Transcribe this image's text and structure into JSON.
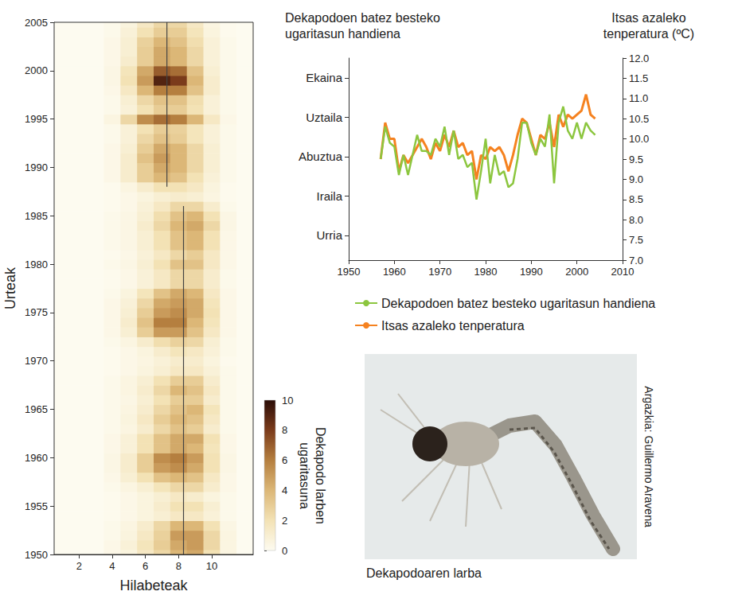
{
  "chart_data": [
    {
      "type": "heatmap",
      "x_label": "Hilabeteak",
      "y_label": "Urteak",
      "x": [
        1,
        2,
        3,
        4,
        5,
        6,
        7,
        8,
        9,
        10,
        11,
        12
      ],
      "y": [
        1950,
        1951,
        1952,
        1953,
        1954,
        1955,
        1956,
        1957,
        1958,
        1959,
        1960,
        1961,
        1962,
        1963,
        1964,
        1965,
        1966,
        1967,
        1968,
        1969,
        1970,
        1971,
        1972,
        1973,
        1974,
        1975,
        1976,
        1977,
        1978,
        1979,
        1980,
        1981,
        1982,
        1983,
        1984,
        1985,
        1986,
        1987,
        1988,
        1989,
        1990,
        1991,
        1992,
        1993,
        1994,
        1995,
        1996,
        1997,
        1998,
        1999,
        2000,
        2001,
        2002,
        2003,
        2004,
        2005
      ],
      "values": [
        [
          0,
          0,
          0,
          0.3,
          0.6,
          1.5,
          2.5,
          4,
          4.5,
          2,
          0.5,
          0
        ],
        [
          0,
          0,
          0,
          0.3,
          0.8,
          1.8,
          3,
          4.5,
          5,
          2.5,
          0.5,
          0
        ],
        [
          0,
          0,
          0,
          0.2,
          0.6,
          1.5,
          2.8,
          5,
          5,
          2.5,
          0.5,
          0
        ],
        [
          0,
          0,
          0,
          0.2,
          0.5,
          1.2,
          2.5,
          4,
          4,
          2,
          0.4,
          0
        ],
        [
          0,
          0,
          0,
          0.1,
          0.3,
          0.6,
          1,
          1.5,
          1.5,
          0.8,
          0.2,
          0
        ],
        [
          0,
          0,
          0,
          0.1,
          0.3,
          0.6,
          1.2,
          2,
          2,
          1,
          0.2,
          0
        ],
        [
          0,
          0,
          0,
          0.1,
          0.3,
          0.6,
          1,
          1.5,
          1.2,
          0.6,
          0.2,
          0
        ],
        [
          0,
          0,
          0,
          0.2,
          0.5,
          1,
          1.8,
          2.5,
          2.5,
          1.2,
          0.3,
          0
        ],
        [
          0,
          0,
          0,
          0.3,
          1,
          2,
          3.5,
          4,
          3.5,
          1.5,
          0.3,
          0
        ],
        [
          0,
          0,
          0,
          0.4,
          1.2,
          3,
          5,
          5.5,
          4.5,
          2,
          0.4,
          0
        ],
        [
          0,
          0,
          0,
          0.4,
          1.2,
          3,
          5.5,
          6,
          5,
          2,
          0.4,
          0
        ],
        [
          0,
          0,
          0,
          0.3,
          0.8,
          2,
          3.5,
          4.5,
          4,
          1.8,
          0.3,
          0
        ],
        [
          0,
          0,
          0,
          0.3,
          0.8,
          2,
          3.5,
          4.5,
          4.5,
          2,
          0.3,
          0
        ],
        [
          0,
          0,
          0,
          0.2,
          0.5,
          1.2,
          2.5,
          3.5,
          3,
          1.2,
          0.2,
          0
        ],
        [
          0,
          0,
          0,
          0.2,
          0.6,
          1.5,
          3,
          4,
          3.5,
          1.5,
          0.2,
          0
        ],
        [
          0,
          0,
          0,
          0.2,
          0.5,
          1.2,
          2.5,
          3.5,
          4,
          1.8,
          0.2,
          0
        ],
        [
          0,
          0,
          0,
          0.2,
          0.4,
          1,
          2,
          3,
          3,
          1.2,
          0.2,
          0
        ],
        [
          0,
          0,
          0,
          0.2,
          0.5,
          1.2,
          2.5,
          4,
          3.5,
          1.5,
          0.2,
          0
        ],
        [
          0,
          0,
          0,
          0.2,
          0.5,
          1,
          2,
          3,
          3,
          1.2,
          0.2,
          0
        ],
        [
          0,
          0,
          0,
          0.1,
          0.3,
          0.6,
          1,
          1.5,
          1.5,
          0.8,
          0.2,
          0
        ],
        [
          0,
          0,
          0,
          0.1,
          0.3,
          0.5,
          0.8,
          1.2,
          1.2,
          0.6,
          0.1,
          0
        ],
        [
          0,
          0,
          0,
          0.1,
          0.3,
          0.6,
          1.2,
          1.8,
          1.5,
          0.8,
          0.2,
          0
        ],
        [
          0,
          0,
          0,
          0.2,
          0.5,
          1.2,
          2.2,
          2.8,
          2.5,
          1,
          0.2,
          0
        ],
        [
          0,
          0,
          0,
          0.3,
          1,
          3,
          5,
          5,
          3.5,
          1.5,
          0.3,
          0
        ],
        [
          0,
          0,
          0,
          0.3,
          1.2,
          3.5,
          6,
          6,
          4,
          1.8,
          0.3,
          0
        ],
        [
          0,
          0,
          0,
          0.3,
          1,
          3,
          5,
          5.5,
          4.5,
          2,
          0.3,
          0
        ],
        [
          0,
          0,
          0,
          0.3,
          0.8,
          2.5,
          4.5,
          5,
          4.5,
          1.8,
          0.3,
          0
        ],
        [
          0,
          0,
          0,
          0.2,
          0.6,
          1.8,
          3.5,
          4.5,
          4,
          1.5,
          0.3,
          0
        ],
        [
          0,
          0,
          0,
          0.1,
          0.3,
          0.8,
          1.5,
          2.5,
          2.5,
          1.2,
          0.2,
          0
        ],
        [
          0,
          0,
          0,
          0.1,
          0.3,
          0.8,
          1.5,
          2.5,
          2.5,
          1.2,
          0.2,
          0
        ],
        [
          0,
          0,
          0,
          0.2,
          0.4,
          1,
          2,
          3.5,
          3.5,
          1.5,
          0.3,
          0
        ],
        [
          0,
          0,
          0,
          0.1,
          0.3,
          0.8,
          1.5,
          2.5,
          3,
          1.5,
          0.3,
          0
        ],
        [
          0,
          0,
          0,
          0.2,
          0.4,
          1,
          2,
          3.5,
          4,
          2,
          0.3,
          0
        ],
        [
          0,
          0,
          0,
          0.2,
          0.4,
          1,
          2,
          3.5,
          4,
          2,
          0.3,
          0
        ],
        [
          0,
          0,
          0,
          0.2,
          0.4,
          1.2,
          2.5,
          4,
          4.5,
          2.5,
          0.4,
          0
        ],
        [
          0,
          0,
          0,
          0.2,
          0.4,
          1,
          2.2,
          3.5,
          4,
          2,
          0.4,
          0
        ],
        [
          0,
          0,
          0,
          0.1,
          0.3,
          0.8,
          1.5,
          2.5,
          2.5,
          1.2,
          0.2,
          0
        ],
        [
          0,
          0,
          0,
          0.1,
          0.3,
          0.6,
          1,
          1.2,
          1,
          0.5,
          0.1,
          0
        ],
        [
          0,
          0,
          0,
          0.1,
          0.5,
          1.2,
          2,
          2,
          1.5,
          0.6,
          0.1,
          0
        ],
        [
          0,
          0,
          0,
          0.3,
          1.2,
          3,
          4,
          3.5,
          2,
          0.8,
          0.2,
          0
        ],
        [
          0,
          0,
          0,
          0.3,
          1.2,
          3,
          4.5,
          4,
          2.5,
          1,
          0.2,
          0
        ],
        [
          0,
          0,
          0,
          0.3,
          1.2,
          3.5,
          5,
          4,
          2.5,
          1,
          0.2,
          0
        ],
        [
          0,
          0,
          0,
          0.3,
          1,
          3,
          4.5,
          4,
          2.5,
          1,
          0.2,
          0
        ],
        [
          0,
          0,
          0,
          0.2,
          0.8,
          2.5,
          3.5,
          3,
          1.8,
          0.8,
          0.2,
          0
        ],
        [
          0,
          0,
          0,
          0.2,
          0.8,
          2,
          3,
          2.8,
          1.8,
          0.8,
          0.2,
          0
        ],
        [
          0,
          0,
          0,
          0.5,
          2.5,
          5.5,
          6.5,
          6,
          4,
          1.5,
          0.3,
          0
        ],
        [
          0,
          0,
          0,
          0.2,
          0.8,
          2,
          3,
          3,
          2,
          0.8,
          0.2,
          0
        ],
        [
          0,
          0,
          0,
          0.2,
          1,
          2.5,
          3.5,
          3.5,
          2.2,
          0.8,
          0.2,
          0
        ],
        [
          0,
          0,
          0,
          0.3,
          1.5,
          4,
          6,
          6,
          3.5,
          1.2,
          0.2,
          0
        ],
        [
          0,
          0,
          0,
          0.4,
          2,
          5,
          9,
          8,
          4,
          1.2,
          0.2,
          0
        ],
        [
          0,
          0,
          0,
          0.4,
          1.8,
          4.5,
          7,
          6.5,
          3.5,
          1,
          0.2,
          0
        ],
        [
          0,
          0,
          0,
          0.3,
          1.2,
          3,
          4.5,
          4,
          2.5,
          0.8,
          0.2,
          0
        ],
        [
          0,
          0,
          0,
          0.3,
          1,
          3,
          4.5,
          4,
          2.5,
          0.8,
          0.2,
          0
        ],
        [
          0,
          0,
          0,
          0.3,
          1,
          2.8,
          4,
          3.5,
          2.2,
          0.8,
          0.2,
          0
        ],
        [
          0,
          0,
          0,
          0.2,
          0.8,
          2,
          3,
          3,
          1.8,
          0.6,
          0.1,
          0
        ],
        [
          0,
          0,
          0,
          0.2,
          0.6,
          1.5,
          2.5,
          2.5,
          1.5,
          0.5,
          0.1,
          0
        ]
      ],
      "xlim": [
        0.5,
        12.5
      ],
      "xticks": [
        2,
        4,
        6,
        8,
        10
      ],
      "ylim": [
        1950,
        2005
      ],
      "yticks": [
        1950,
        1955,
        1960,
        1965,
        1970,
        1975,
        1980,
        1985,
        1990,
        1995,
        2000,
        2005
      ],
      "colorbar": {
        "label": "Dekapodo larben ugaritasuna",
        "range": [
          0,
          10
        ],
        "ticks": [
          0,
          2,
          4,
          6,
          8,
          10
        ]
      },
      "peak_lines": [
        {
          "x": 7.3,
          "years": [
            1988,
            2005
          ]
        },
        {
          "x": 8.3,
          "years": [
            1950,
            1986
          ]
        }
      ],
      "grid": false
    },
    {
      "type": "line",
      "y_label": "Dekapodoen batez besteko ugaritasun handiena",
      "y2_label": "Itsas azaleko tenperatura (ºC)",
      "x": [
        1957,
        1958,
        1959,
        1960,
        1961,
        1962,
        1963,
        1964,
        1965,
        1966,
        1967,
        1968,
        1969,
        1970,
        1971,
        1972,
        1973,
        1974,
        1975,
        1976,
        1977,
        1978,
        1979,
        1980,
        1981,
        1982,
        1983,
        1984,
        1985,
        1986,
        1987,
        1988,
        1989,
        1990,
        1991,
        1992,
        1993,
        1994,
        1995,
        1996,
        1997,
        1998,
        1999,
        2000,
        2001,
        2002,
        2003,
        2004
      ],
      "xlim": [
        1950,
        2010
      ],
      "xticks": [
        1950,
        1960,
        1970,
        1980,
        1990,
        2000,
        2010
      ],
      "ylim": [
        10.63,
        5.5
      ],
      "yticks": [
        {
          "value": 6,
          "label": "Ekaina"
        },
        {
          "value": 7,
          "label": "Uztaila"
        },
        {
          "value": 8,
          "label": "Abuztua"
        },
        {
          "value": 9,
          "label": "Iraila"
        },
        {
          "value": 10,
          "label": "Urria"
        }
      ],
      "y2lim": [
        7,
        12
      ],
      "y2ticks": [
        {
          "value": 7,
          "label": "7.0"
        },
        7.5,
        {
          "value": 8,
          "label": "8.0"
        },
        8.5,
        {
          "value": 9,
          "label": "9.0"
        },
        9.5,
        {
          "value": 10,
          "label": "10.0"
        },
        10.5,
        {
          "value": 11,
          "label": "11.0"
        },
        11.5,
        {
          "value": 12,
          "label": "12.0"
        }
      ],
      "series": [
        {
          "name": "Dekapodoen batez besteko ugaritasun handiena",
          "color": "#8cc63f",
          "values": [
            8.06,
            7.24,
            7.65,
            7.75,
            8.47,
            7.96,
            8.47,
            7.96,
            7.45,
            7.86,
            7.86,
            7.96,
            7.55,
            7.75,
            7.24,
            7.96,
            7.34,
            8.06,
            7.96,
            8.27,
            8.16,
            9.09,
            8.37,
            7.55,
            8.68,
            7.96,
            8.47,
            8.37,
            8.78,
            8.68,
            8.06,
            7.14,
            7.14,
            7.65,
            7.96,
            7.55,
            7.75,
            6.93,
            8.68,
            7.14,
            6.73,
            7.34,
            7.55,
            7.14,
            7.55,
            7.14,
            7.34,
            7.45
          ]
        },
        {
          "name": "Itsas azaleko tenperatura",
          "color": "#f58220",
          "axis": "y2",
          "values": [
            9.5,
            10.4,
            10.0,
            10.0,
            9.2,
            9.6,
            9.4,
            9.6,
            9.8,
            10.0,
            9.8,
            9.5,
            9.9,
            9.7,
            10.1,
            9.8,
            10.2,
            9.8,
            9.9,
            9.6,
            9.7,
            9.0,
            9.6,
            9.5,
            9.8,
            9.7,
            9.8,
            9.6,
            9.2,
            9.6,
            10.1,
            10.5,
            10.4,
            10.0,
            9.6,
            10.1,
            10.0,
            10.4,
            9.8,
            10.6,
            10.3,
            10.6,
            10.5,
            10.6,
            10.7,
            11.1,
            10.6,
            10.5
          ]
        }
      ],
      "legend": "bottom",
      "grid": false
    }
  ],
  "photo": {
    "caption": "Dekapodoaren larba",
    "credit": "Argazkia: Guillermo Aravena"
  }
}
